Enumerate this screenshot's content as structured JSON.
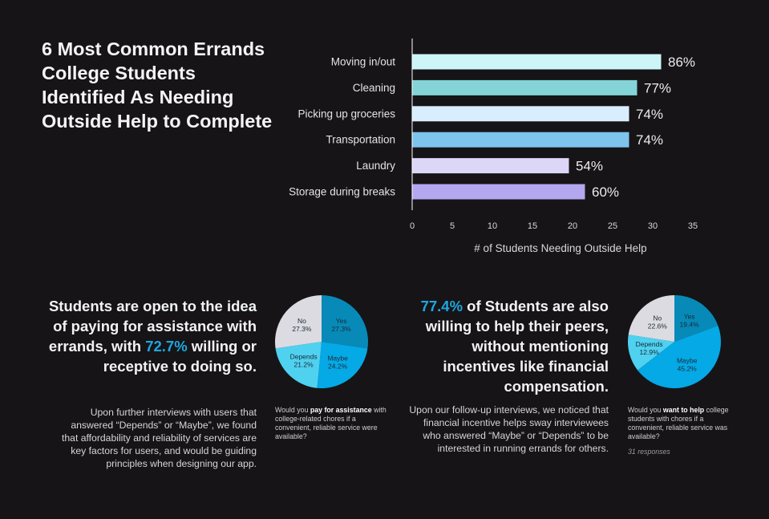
{
  "title": "6 Most Common Errands College Students Identified As Needing Outside Help to Complete",
  "chart_data": [
    {
      "type": "bar",
      "orientation": "horizontal",
      "categories": [
        "Moving in/out",
        "Cleaning",
        "Picking up groceries",
        "Transportation",
        "Laundry",
        "Storage during breaks"
      ],
      "values": [
        31,
        28,
        27,
        27,
        19.5,
        21.5
      ],
      "data_labels": [
        "86%",
        "77%",
        "74%",
        "74%",
        "54%",
        "60%"
      ],
      "colors": [
        "#cdf5f7",
        "#83d3d7",
        "#d9eefc",
        "#7ec3ec",
        "#dcd6f7",
        "#b3a7ef"
      ],
      "xlabel": "# of Students Needing Outside Help",
      "xlim": [
        0,
        35
      ],
      "xticks": [
        0,
        5,
        10,
        15,
        20,
        25,
        30,
        35
      ],
      "grid": true
    },
    {
      "type": "pie",
      "slices": [
        {
          "label": "Yes",
          "value": 27.3,
          "text": "27.3%",
          "color": "#078ab8"
        },
        {
          "label": "Maybe",
          "value": 24.2,
          "text": "24.2%",
          "color": "#04a9e6"
        },
        {
          "label": "Depends",
          "value": 21.2,
          "text": "21.2%",
          "color": "#4fd1f0"
        },
        {
          "label": "No",
          "value": 27.3,
          "text": "27.3%",
          "color": "#dcdbe2"
        }
      ]
    },
    {
      "type": "pie",
      "slices": [
        {
          "label": "Yes",
          "value": 19.4,
          "text": "19.4%",
          "color": "#078ab8"
        },
        {
          "label": "Maybe",
          "value": 45.2,
          "text": "45.2%",
          "color": "#04a9e6"
        },
        {
          "label": "Depends",
          "value": 12.9,
          "text": "12.9%",
          "color": "#4fd1f0"
        },
        {
          "label": "No",
          "value": 22.6,
          "text": "22.6%",
          "color": "#dcdbe2"
        }
      ]
    }
  ],
  "section1": {
    "claim_a": "Students are open to the idea of paying for assistance with errands, with ",
    "claim_hl": "72.7%",
    "claim_b": " willing or receptive to doing so.",
    "note": "Upon further interviews with users that answered “Depends” or “Maybe”, we found that affordability and reliability of services are key factors for users, and would be guiding principles when designing our app.",
    "q_a": "Would you ",
    "q_bold": "pay for assistance",
    "q_b": " with college-related chores if a convenient, reliable service were available?"
  },
  "section2": {
    "claim_hl": "77.4%",
    "claim_b": " of Students are also willing to help their peers, without mentioning incentives like financial compensation.",
    "note": "Upon our follow-up interviews, we noticed that financial incentive helps sway interviewees who answered “Maybe” or “Depends” to be interested in running errands for others.",
    "q_a": "Would you ",
    "q_bold": "want to help",
    "q_b": " college students with chores if a convenient, reliable service was available?",
    "responses": "31 responses"
  }
}
